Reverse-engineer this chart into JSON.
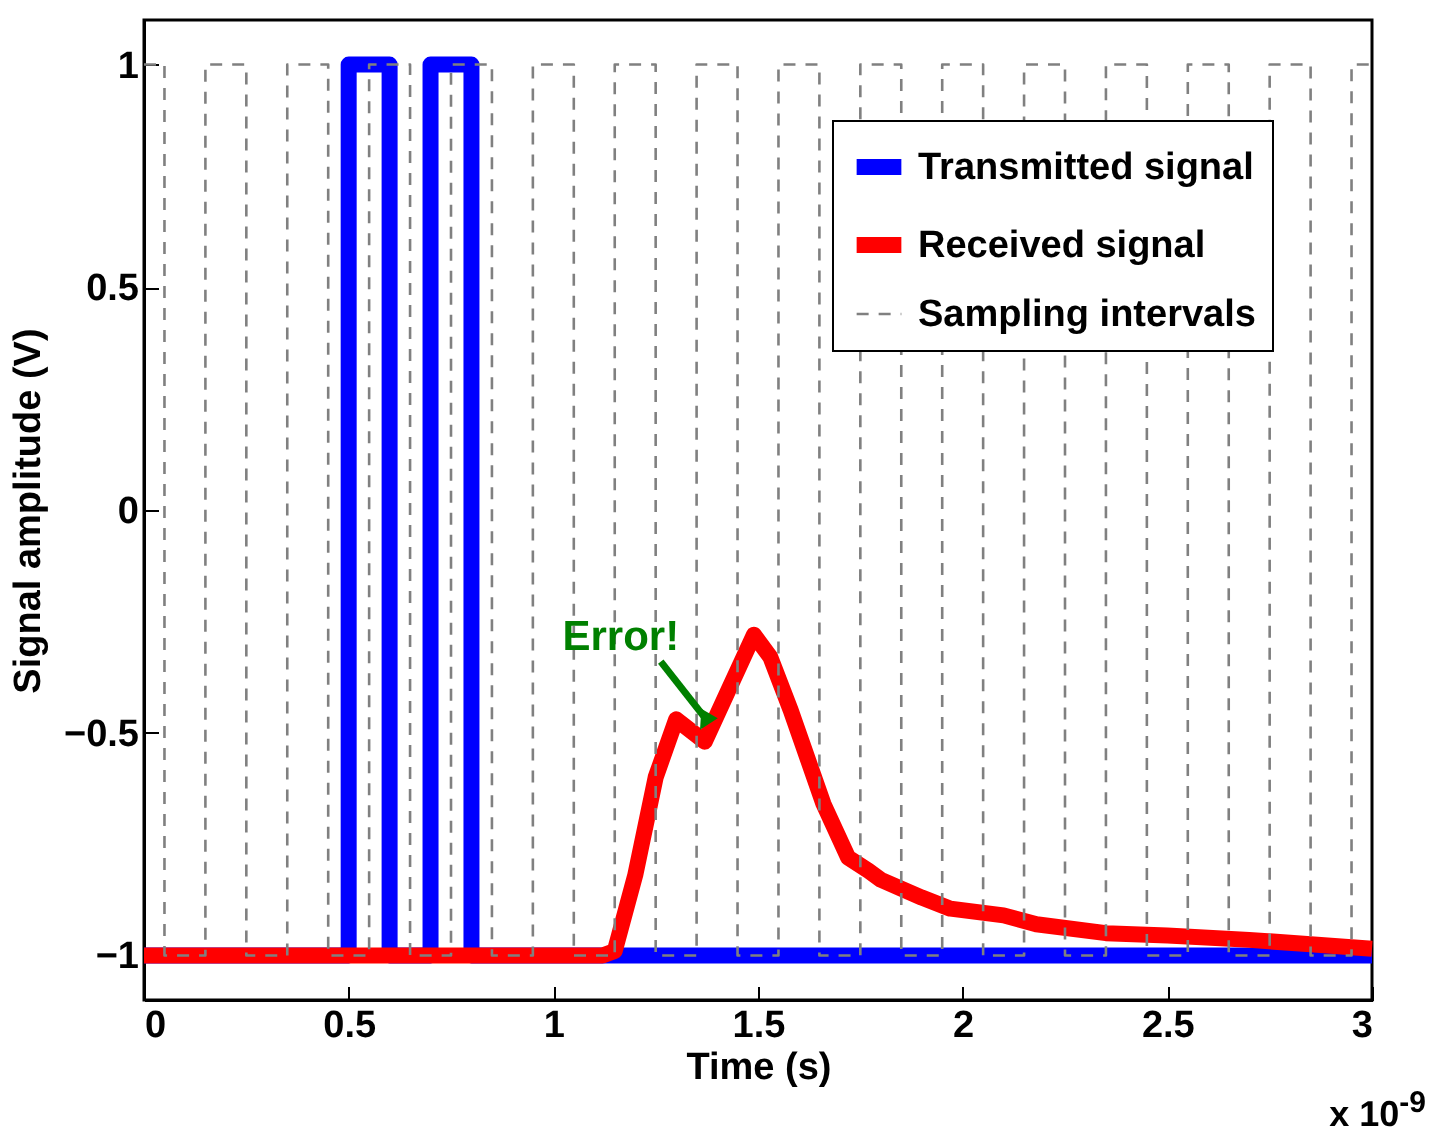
{
  "chart_data": {
    "type": "line",
    "xlabel": "Time (s)",
    "ylabel": "Signal amplitude (V)",
    "xlim": [
      0,
      3
    ],
    "xticks": [
      0,
      0.5,
      1,
      1.5,
      2,
      2.5,
      3
    ],
    "ylim": [
      -1.1,
      1.1
    ],
    "yticks": [
      -1,
      -0.5,
      0,
      0.5,
      1
    ],
    "grid": false,
    "legend": "top right",
    "annotations": [
      {
        "text": "Error!",
        "x": 1.37,
        "y": -0.52
      },
      "x 10$^{-9}$"
    ],
    "series": [
      {
        "name": "Transmitted signal",
        "color": "#0000ff",
        "line_style": "solid",
        "x": [
          0,
          0.5,
          0.5,
          0.6,
          0.6,
          0.7,
          0.7,
          0.8,
          0.8,
          3
        ],
        "values": [
          -1,
          -1,
          1,
          1,
          -1,
          -1,
          1,
          1,
          -1,
          -1
        ]
      },
      {
        "name": "Received signal",
        "color": "#ff0000",
        "line_style": "solid",
        "x": [
          0,
          1.12,
          1.15,
          1.2,
          1.25,
          1.3,
          1.37,
          1.43,
          1.49,
          1.53,
          1.58,
          1.66,
          1.72,
          1.77,
          1.8,
          1.9,
          1.97,
          2.1,
          2.18,
          2.35,
          2.5,
          2.7,
          2.85,
          3
        ],
        "values": [
          -1,
          -1,
          -0.99,
          -0.82,
          -0.6,
          -0.47,
          -0.52,
          -0.4,
          -0.28,
          -0.33,
          -0.45,
          -0.66,
          -0.78,
          -0.81,
          -0.83,
          -0.87,
          -0.895,
          -0.91,
          -0.93,
          -0.95,
          -0.955,
          -0.965,
          -0.975,
          -0.985
        ]
      },
      {
        "name": "Sampling intervals",
        "color": "#808080",
        "line_style": "dashed",
        "x": [
          0,
          0.05,
          0.05,
          0.15,
          0.15,
          0.25,
          0.25,
          0.35,
          0.35,
          0.45,
          0.45,
          0.55,
          0.55,
          0.65,
          0.65,
          0.75,
          0.75,
          0.85,
          0.85,
          0.95,
          0.95,
          1.05,
          1.05,
          1.15,
          1.15,
          1.25,
          1.25,
          1.35,
          1.35,
          1.45,
          1.45,
          1.55,
          1.55,
          1.65,
          1.65,
          1.75,
          1.75,
          1.85,
          1.85,
          1.95,
          1.95,
          2.05,
          2.05,
          2.15,
          2.15,
          2.25,
          2.25,
          2.35,
          2.35,
          2.45,
          2.45,
          2.55,
          2.55,
          2.65,
          2.65,
          2.75,
          2.75,
          2.85,
          2.85,
          2.95,
          2.95,
          3
        ],
        "values": [
          1,
          1,
          -1,
          -1,
          1,
          1,
          -1,
          -1,
          1,
          1,
          -1,
          -1,
          1,
          1,
          -1,
          -1,
          1,
          1,
          -1,
          -1,
          1,
          1,
          -1,
          -1,
          1,
          1,
          -1,
          -1,
          1,
          1,
          -1,
          -1,
          1,
          1,
          -1,
          -1,
          1,
          1,
          -1,
          -1,
          1,
          1,
          -1,
          -1,
          1,
          1,
          -1,
          -1,
          1,
          1,
          -1,
          -1,
          1,
          1,
          -1,
          -1,
          1,
          1,
          -1,
          -1,
          1,
          1
        ]
      }
    ]
  }
}
